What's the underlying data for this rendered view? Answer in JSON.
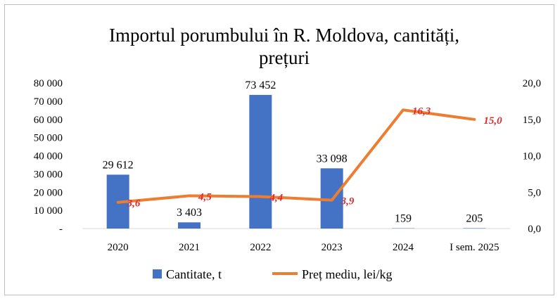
{
  "chart_data": {
    "type": "bar",
    "title_line1": "Importul porumbului în R. Moldova, cantități,",
    "title_line2": "prețuri",
    "categories": [
      "2020",
      "2021",
      "2022",
      "2023",
      "2024",
      "I sem. 2025"
    ],
    "series": [
      {
        "name": "Cantitate, t",
        "type": "bar",
        "axis": "left",
        "values": [
          29612,
          3403,
          73452,
          33098,
          159,
          205
        ],
        "labels": [
          "29 612",
          "3 403",
          "73 452",
          "33 098",
          "159",
          "205"
        ],
        "color": "#4472c4"
      },
      {
        "name": "Preț mediu, lei/kg",
        "type": "line",
        "axis": "right",
        "values": [
          3.6,
          4.5,
          4.4,
          3.9,
          16.3,
          15.0
        ],
        "labels": [
          "3,6",
          "4,5",
          "4,4",
          "3,9",
          "16,3",
          "15,0"
        ],
        "color": "#ed7d31",
        "label_color": "#e02a2a"
      }
    ],
    "y_left": {
      "ylim": [
        0,
        80000
      ],
      "ticks": [
        0,
        10000,
        20000,
        30000,
        40000,
        50000,
        60000,
        70000,
        80000
      ],
      "tick_labels": [
        "-",
        "10 000",
        "20 000",
        "30 000",
        "40 000",
        "50 000",
        "60 000",
        "70 000",
        "80 000"
      ]
    },
    "y_right": {
      "ylim": [
        0,
        20
      ],
      "ticks": [
        0,
        5,
        10,
        15,
        20
      ],
      "tick_labels": [
        "0,0",
        "5,0",
        "10,0",
        "15,0",
        "20,0"
      ]
    },
    "grid": false,
    "legend_position": "bottom"
  }
}
